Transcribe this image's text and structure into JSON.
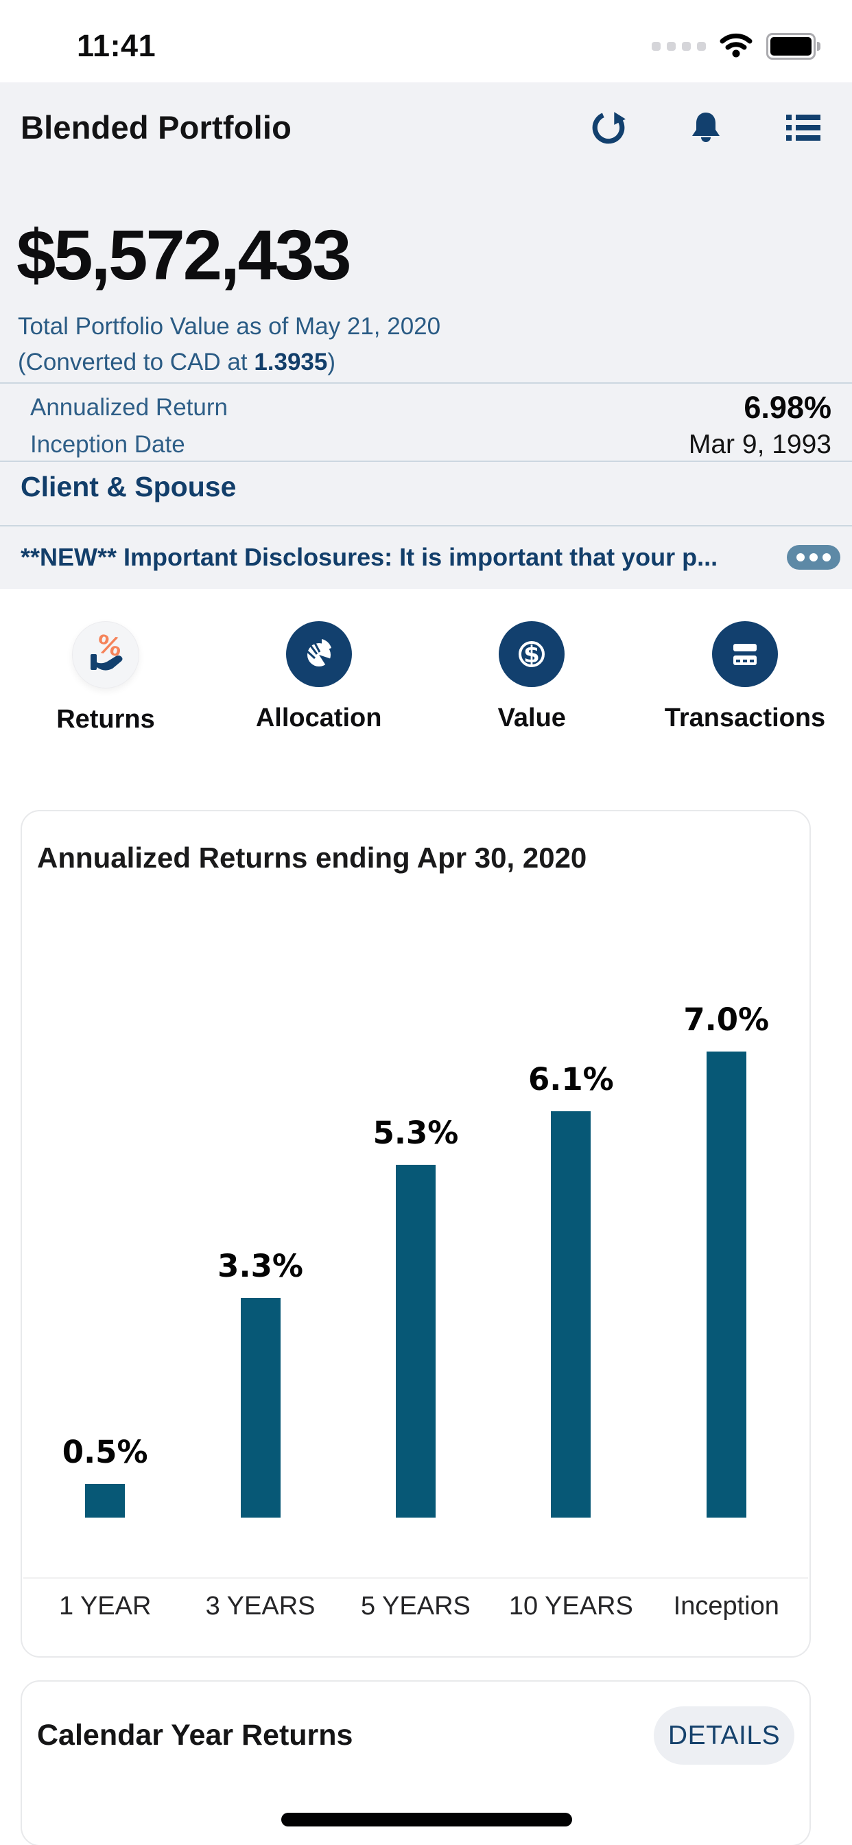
{
  "status_bar": {
    "time": "11:41"
  },
  "header": {
    "title": "Blended Portfolio",
    "icons": [
      "refresh-icon",
      "bell-icon",
      "list-icon"
    ]
  },
  "portfolio": {
    "total_value": "$5,572,433",
    "value_caption": "Total Portfolio Value as of May 21, 2020",
    "conversion_prefix": "(Converted to CAD at ",
    "conversion_rate": "1.3935",
    "conversion_suffix": ")",
    "stats": [
      {
        "label": "Annualized Return",
        "value": "6.98%"
      },
      {
        "label": "Inception Date",
        "value": "Mar 9, 1993"
      }
    ],
    "account_name": "Client & Spouse",
    "disclosure_text": "**NEW** Important Disclosures:  It is important that your p..."
  },
  "nav": {
    "items": [
      {
        "label": "Returns",
        "icon": "hand-percent-icon",
        "active": true
      },
      {
        "label": "Allocation",
        "icon": "pie-chart-icon",
        "active": false
      },
      {
        "label": "Value",
        "icon": "dollar-circle-icon",
        "active": false
      },
      {
        "label": "Transactions",
        "icon": "credit-card-icon",
        "active": false
      }
    ]
  },
  "chart_card": {
    "title": "Annualized Returns ending Apr 30, 2020"
  },
  "chart_data": {
    "type": "bar",
    "title": "Annualized Returns ending Apr 30, 2020",
    "categories": [
      "1 YEAR",
      "3 YEARS",
      "5 YEARS",
      "10 YEARS",
      "Inception"
    ],
    "values": [
      0.5,
      3.3,
      5.3,
      6.1,
      7.0
    ],
    "value_labels": [
      "0.5%",
      "3.3%",
      "5.3%",
      "6.1%",
      "7.0%"
    ],
    "bar_color": "#075876",
    "xlabel": "",
    "ylabel": "",
    "ylim": [
      0,
      7.5
    ],
    "grid": false,
    "legend": false
  },
  "calendar_card": {
    "title": "Calendar Year Returns",
    "details_label": "DETAILS"
  },
  "colors": {
    "navy": "#12406e",
    "light_navy_text": "#2a5b84",
    "bar_teal": "#075876",
    "header_bg": "#f1f2f5",
    "divider": "#ccd7e0",
    "pill_slate": "#5d89a6",
    "accent_orange": "#f5835a"
  }
}
